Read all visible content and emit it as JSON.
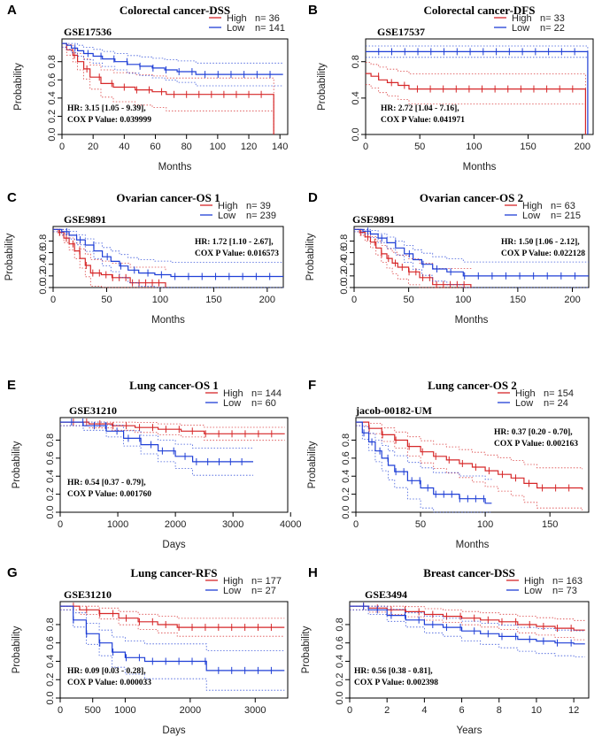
{
  "colors": {
    "high": "#d62728",
    "low": "#1f3fd6"
  },
  "chart_data": [
    {
      "id": "A",
      "type": "line",
      "letter": "A",
      "title": "Colorectal cancer-DSS",
      "dataset": "GSE17536",
      "xlabel": "Months",
      "ylabel": "Probability",
      "xlim": [
        0,
        145
      ],
      "ylim": [
        0,
        1
      ],
      "xticks": [
        "0",
        "20",
        "40",
        "60",
        "80",
        "100",
        "120",
        "140"
      ],
      "xtick_values": [
        0,
        20,
        40,
        60,
        80,
        100,
        120,
        140
      ],
      "yticks": [
        "0.0",
        "0.2",
        "0.4",
        "0.6",
        "0.8"
      ],
      "ytick_values": [
        0,
        0.2,
        0.4,
        0.6,
        0.8
      ],
      "legend": [
        {
          "label": "High",
          "n": "n= 36"
        },
        {
          "label": "Low",
          "n": "n= 141"
        }
      ],
      "stats": [
        "HR: 3.15 [1.05 - 9.39],",
        "COX P Value: 0.039999"
      ],
      "series": [
        {
          "name": "High",
          "x": [
            0,
            3,
            7,
            10,
            14,
            18,
            25,
            33,
            47,
            58,
            67,
            136,
            136
          ],
          "y": [
            1.0,
            0.93,
            0.87,
            0.8,
            0.72,
            0.63,
            0.56,
            0.52,
            0.49,
            0.47,
            0.44,
            0.44,
            0.0
          ]
        },
        {
          "name": "Low",
          "x": [
            0,
            3,
            6,
            10,
            14,
            20,
            26,
            34,
            42,
            50,
            58,
            66,
            74,
            86,
            142
          ],
          "y": [
            1.0,
            0.98,
            0.95,
            0.92,
            0.89,
            0.86,
            0.83,
            0.8,
            0.77,
            0.75,
            0.73,
            0.71,
            0.69,
            0.66,
            0.66
          ]
        }
      ]
    },
    {
      "id": "B",
      "type": "line",
      "letter": "B",
      "title": "Colorectal cancer-DFS",
      "dataset": "GSE17537",
      "xlabel": "Months",
      "ylabel": "Probability",
      "xlim": [
        0,
        210
      ],
      "ylim": [
        0,
        1
      ],
      "xticks": [
        "0",
        "50",
        "100",
        "150",
        "200"
      ],
      "xtick_values": [
        0,
        50,
        100,
        150,
        200
      ],
      "yticks": [
        "0.0",
        "0.4",
        "0.8"
      ],
      "ytick_values": [
        0,
        0.4,
        0.8
      ],
      "legend": [
        {
          "label": "High",
          "n": "n= 33"
        },
        {
          "label": "Low",
          "n": "n= 22"
        }
      ],
      "stats": [
        "HR: 2.72 [1.04 - 7.16],",
        "COX P Value: 0.041971"
      ],
      "series": [
        {
          "name": "High",
          "x": [
            0,
            5,
            12,
            20,
            30,
            40,
            203,
            203
          ],
          "y": [
            0.67,
            0.64,
            0.6,
            0.57,
            0.54,
            0.5,
            0.5,
            0.0
          ]
        },
        {
          "name": "Low",
          "x": [
            0,
            205,
            205
          ],
          "y": [
            0.91,
            0.91,
            0.0
          ]
        }
      ]
    },
    {
      "id": "C",
      "type": "line",
      "letter": "C",
      "title": "Ovarian cancer-OS 1",
      "dataset": "GSE9891",
      "xlabel": "Months",
      "ylabel": "Probability",
      "xlim": [
        0,
        215
      ],
      "ylim": [
        0,
        1
      ],
      "xticks": [
        "0",
        "50",
        "100",
        "150",
        "200"
      ],
      "xtick_values": [
        0,
        50,
        100,
        150,
        200
      ],
      "yticks": [
        "0.0",
        "0.2",
        "0.4",
        "0.6",
        "0.8"
      ],
      "ytick_values": [
        0,
        0.2,
        0.4,
        0.6,
        0.8
      ],
      "legend": [
        {
          "label": "High",
          "n": "n= 39"
        },
        {
          "label": "Low",
          "n": "n= 239"
        }
      ],
      "stats": [
        "HR: 1.72 [1.10 - 2.67],",
        "COX P Value: 0.016573"
      ],
      "series": [
        {
          "name": "High",
          "x": [
            0,
            5,
            10,
            15,
            20,
            25,
            30,
            35,
            45,
            55,
            72,
            105,
            105
          ],
          "y": [
            1.0,
            0.95,
            0.85,
            0.75,
            0.63,
            0.5,
            0.38,
            0.25,
            0.22,
            0.17,
            0.08,
            0.08,
            0.0
          ]
        },
        {
          "name": "Low",
          "x": [
            0,
            8,
            15,
            22,
            30,
            38,
            46,
            54,
            62,
            70,
            80,
            95,
            110,
            215
          ],
          "y": [
            1.0,
            0.96,
            0.9,
            0.82,
            0.73,
            0.63,
            0.53,
            0.45,
            0.37,
            0.3,
            0.25,
            0.22,
            0.19,
            0.19
          ]
        }
      ]
    },
    {
      "id": "D",
      "type": "line",
      "letter": "D",
      "title": "Ovarian cancer-OS 2",
      "dataset": "GSE9891",
      "xlabel": "Months",
      "ylabel": "Probability",
      "xlim": [
        0,
        215
      ],
      "ylim": [
        0,
        1
      ],
      "xticks": [
        "0",
        "50",
        "100",
        "150",
        "200"
      ],
      "xtick_values": [
        0,
        50,
        100,
        150,
        200
      ],
      "yticks": [
        "0.0",
        "0.2",
        "0.4",
        "0.6",
        "0.8"
      ],
      "ytick_values": [
        0,
        0.2,
        0.4,
        0.6,
        0.8
      ],
      "legend": [
        {
          "label": "High",
          "n": "n= 63"
        },
        {
          "label": "Low",
          "n": "n= 215"
        }
      ],
      "stats": [
        "HR: 1.50 [1.06 - 2.12],",
        "COX P Value: 0.022128"
      ],
      "series": [
        {
          "name": "High",
          "x": [
            0,
            5,
            10,
            15,
            20,
            25,
            30,
            35,
            40,
            50,
            60,
            72,
            107,
            107
          ],
          "y": [
            1.0,
            0.95,
            0.87,
            0.78,
            0.68,
            0.58,
            0.5,
            0.42,
            0.35,
            0.27,
            0.17,
            0.05,
            0.05,
            0.0
          ]
        },
        {
          "name": "Low",
          "x": [
            0,
            8,
            15,
            22,
            30,
            38,
            46,
            54,
            62,
            72,
            85,
            100,
            215
          ],
          "y": [
            1.0,
            0.97,
            0.92,
            0.85,
            0.77,
            0.68,
            0.58,
            0.48,
            0.4,
            0.32,
            0.27,
            0.2,
            0.2
          ]
        }
      ]
    },
    {
      "id": "E",
      "type": "line",
      "letter": "E",
      "title": "Lung cancer-OS 1",
      "dataset": "GSE31210",
      "xlabel": "Days",
      "ylabel": "Probability",
      "xlim": [
        0,
        3950
      ],
      "ylim": [
        0,
        1
      ],
      "xticks": [
        "0",
        "1000",
        "2000",
        "3000",
        "4000"
      ],
      "xtick_values": [
        0,
        1000,
        2000,
        3000,
        4000
      ],
      "yticks": [
        "0.0",
        "0.2",
        "0.4",
        "0.6",
        "0.8"
      ],
      "ytick_values": [
        0,
        0.2,
        0.4,
        0.6,
        0.8
      ],
      "legend": [
        {
          "label": "High",
          "n": "n= 144"
        },
        {
          "label": "Low",
          "n": "n= 60"
        }
      ],
      "stats": [
        "HR: 0.54 [0.37 - 0.79],",
        "COX P Value: 0.001760"
      ],
      "series": [
        {
          "name": "High",
          "x": [
            0,
            500,
            900,
            1300,
            1700,
            2100,
            2500,
            3900
          ],
          "y": [
            1.0,
            0.98,
            0.96,
            0.94,
            0.92,
            0.9,
            0.87,
            0.87
          ]
        },
        {
          "name": "Low",
          "x": [
            0,
            400,
            800,
            1100,
            1400,
            1700,
            2000,
            2300,
            3350
          ],
          "y": [
            1.0,
            0.96,
            0.9,
            0.82,
            0.75,
            0.68,
            0.62,
            0.56,
            0.56
          ]
        }
      ]
    },
    {
      "id": "F",
      "type": "line",
      "letter": "F",
      "title": "Lung cancer-OS 2",
      "dataset": "jacob-00182-UM",
      "xlabel": "Months",
      "ylabel": "Probability",
      "xlim": [
        0,
        180
      ],
      "ylim": [
        0,
        1
      ],
      "xticks": [
        "0",
        "50",
        "100",
        "150"
      ],
      "xtick_values": [
        0,
        50,
        100,
        150
      ],
      "yticks": [
        "0.0",
        "0.2",
        "0.4",
        "0.6",
        "0.8"
      ],
      "ytick_values": [
        0,
        0.2,
        0.4,
        0.6,
        0.8
      ],
      "legend": [
        {
          "label": "High",
          "n": "n= 154"
        },
        {
          "label": "Low",
          "n": "n= 24"
        }
      ],
      "stats": [
        "HR: 0.37 [0.20 - 0.70],",
        "COX P Value: 0.002163"
      ],
      "series": [
        {
          "name": "High",
          "x": [
            0,
            10,
            20,
            30,
            40,
            50,
            60,
            70,
            80,
            90,
            100,
            110,
            120,
            130,
            140,
            175
          ],
          "y": [
            1.0,
            0.93,
            0.86,
            0.8,
            0.73,
            0.67,
            0.62,
            0.58,
            0.54,
            0.5,
            0.46,
            0.42,
            0.38,
            0.32,
            0.27,
            0.25
          ]
        },
        {
          "name": "Low",
          "x": [
            0,
            5,
            10,
            15,
            20,
            25,
            30,
            40,
            50,
            60,
            80,
            100,
            105
          ],
          "y": [
            1.0,
            0.88,
            0.78,
            0.68,
            0.6,
            0.52,
            0.45,
            0.35,
            0.27,
            0.2,
            0.15,
            0.1,
            0.1
          ]
        }
      ]
    },
    {
      "id": "G",
      "type": "line",
      "letter": "G",
      "title": "Lung cancer-RFS",
      "dataset": "GSE31210",
      "xlabel": "Days",
      "ylabel": "Probability",
      "xlim": [
        0,
        3500
      ],
      "ylim": [
        0,
        1
      ],
      "xticks": [
        "0",
        "500",
        "1000",
        "2000",
        "3000"
      ],
      "xtick_values": [
        0,
        500,
        1000,
        2000,
        3000
      ],
      "yticks": [
        "0.0",
        "0.2",
        "0.4",
        "0.6",
        "0.8"
      ],
      "ytick_values": [
        0,
        0.2,
        0.4,
        0.6,
        0.8
      ],
      "legend": [
        {
          "label": "High",
          "n": "n= 177"
        },
        {
          "label": "Low",
          "n": "n= 27"
        }
      ],
      "stats": [
        "HR: 0.09 [0.03 - 0.28],",
        "COX P Value: 0.000033"
      ],
      "series": [
        {
          "name": "High",
          "x": [
            0,
            300,
            600,
            900,
            1200,
            1500,
            1800,
            3450
          ],
          "y": [
            1.0,
            0.96,
            0.92,
            0.87,
            0.83,
            0.8,
            0.77,
            0.77
          ]
        },
        {
          "name": "Low",
          "x": [
            0,
            200,
            400,
            600,
            800,
            1000,
            1300,
            2250,
            2250,
            3450
          ],
          "y": [
            1.0,
            0.85,
            0.7,
            0.6,
            0.5,
            0.44,
            0.4,
            0.4,
            0.3,
            0.3
          ]
        }
      ]
    },
    {
      "id": "H",
      "type": "line",
      "letter": "H",
      "title": "Breast cancer-DSS",
      "dataset": "GSE3494",
      "xlabel": "Years",
      "ylabel": "Probability",
      "xlim": [
        0,
        12.8
      ],
      "ylim": [
        0,
        1
      ],
      "xticks": [
        "0",
        "2",
        "4",
        "6",
        "8",
        "10",
        "12"
      ],
      "xtick_values": [
        0,
        2,
        4,
        6,
        8,
        10,
        12
      ],
      "yticks": [
        "0.0",
        "0.2",
        "0.4",
        "0.6",
        "0.8"
      ],
      "ytick_values": [
        0,
        0.2,
        0.4,
        0.6,
        0.8
      ],
      "legend": [
        {
          "label": "High",
          "n": "n= 163"
        },
        {
          "label": "Low",
          "n": "n= 73"
        }
      ],
      "stats": [
        "HR: 0.56 [0.38 - 0.81],",
        "COX P Value: 0.002398"
      ],
      "series": [
        {
          "name": "High",
          "x": [
            0,
            1,
            2,
            3,
            4,
            5,
            6,
            7,
            8,
            9,
            10,
            11,
            12,
            12.6
          ],
          "y": [
            1.0,
            0.98,
            0.96,
            0.94,
            0.91,
            0.89,
            0.87,
            0.85,
            0.83,
            0.8,
            0.78,
            0.76,
            0.74,
            0.74
          ]
        },
        {
          "name": "Low",
          "x": [
            0,
            1,
            2,
            3,
            4,
            5,
            6,
            7,
            8,
            9,
            10,
            11,
            12,
            12.6
          ],
          "y": [
            1.0,
            0.96,
            0.9,
            0.85,
            0.8,
            0.77,
            0.73,
            0.7,
            0.67,
            0.64,
            0.62,
            0.6,
            0.59,
            0.59
          ]
        }
      ]
    }
  ]
}
